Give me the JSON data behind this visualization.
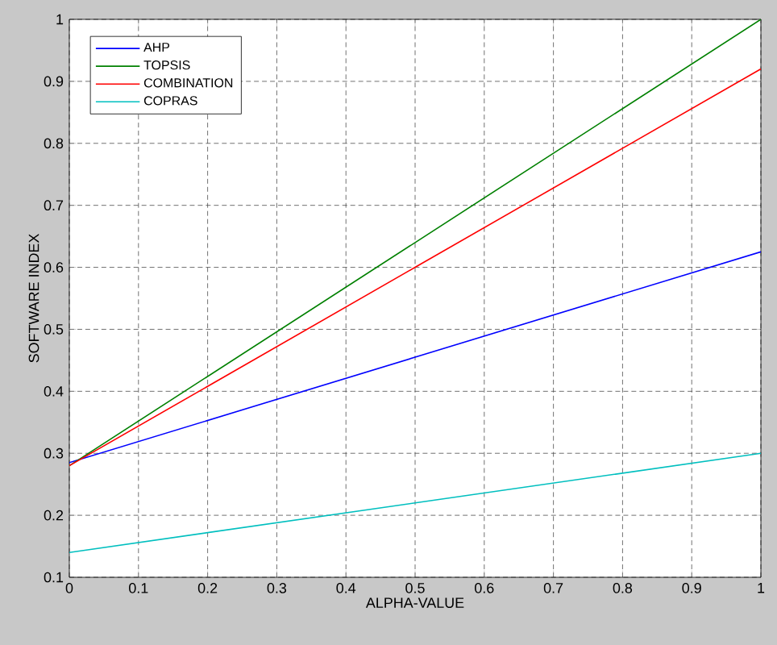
{
  "chart_data": {
    "type": "line",
    "xlabel": "ALPHA-VALUE",
    "ylabel": "SOFTWARE INDEX",
    "x": [
      0,
      0.5,
      1
    ],
    "series": [
      {
        "name": "AHP",
        "color": "#0000ff",
        "values": [
          0.285,
          0.455,
          0.625
        ]
      },
      {
        "name": "TOPSIS",
        "color": "#008000",
        "values": [
          0.28,
          0.64,
          1.0
        ]
      },
      {
        "name": "COMBINATION",
        "color": "#ff0000",
        "values": [
          0.28,
          0.6,
          0.92
        ]
      },
      {
        "name": "COPRAS",
        "color": "#00bfbf",
        "values": [
          0.14,
          0.22,
          0.3
        ]
      }
    ],
    "xlim": [
      0,
      1
    ],
    "ylim": [
      0.1,
      1
    ],
    "xticks": [
      0,
      0.1,
      0.2,
      0.3,
      0.4,
      0.5,
      0.6,
      0.7,
      0.8,
      0.9,
      1
    ],
    "yticks": [
      0.1,
      0.2,
      0.3,
      0.4,
      0.5,
      0.6,
      0.7,
      0.8,
      0.9,
      1
    ],
    "grid": true,
    "legend": "top left",
    "line_style": "solid",
    "marker": "none"
  }
}
